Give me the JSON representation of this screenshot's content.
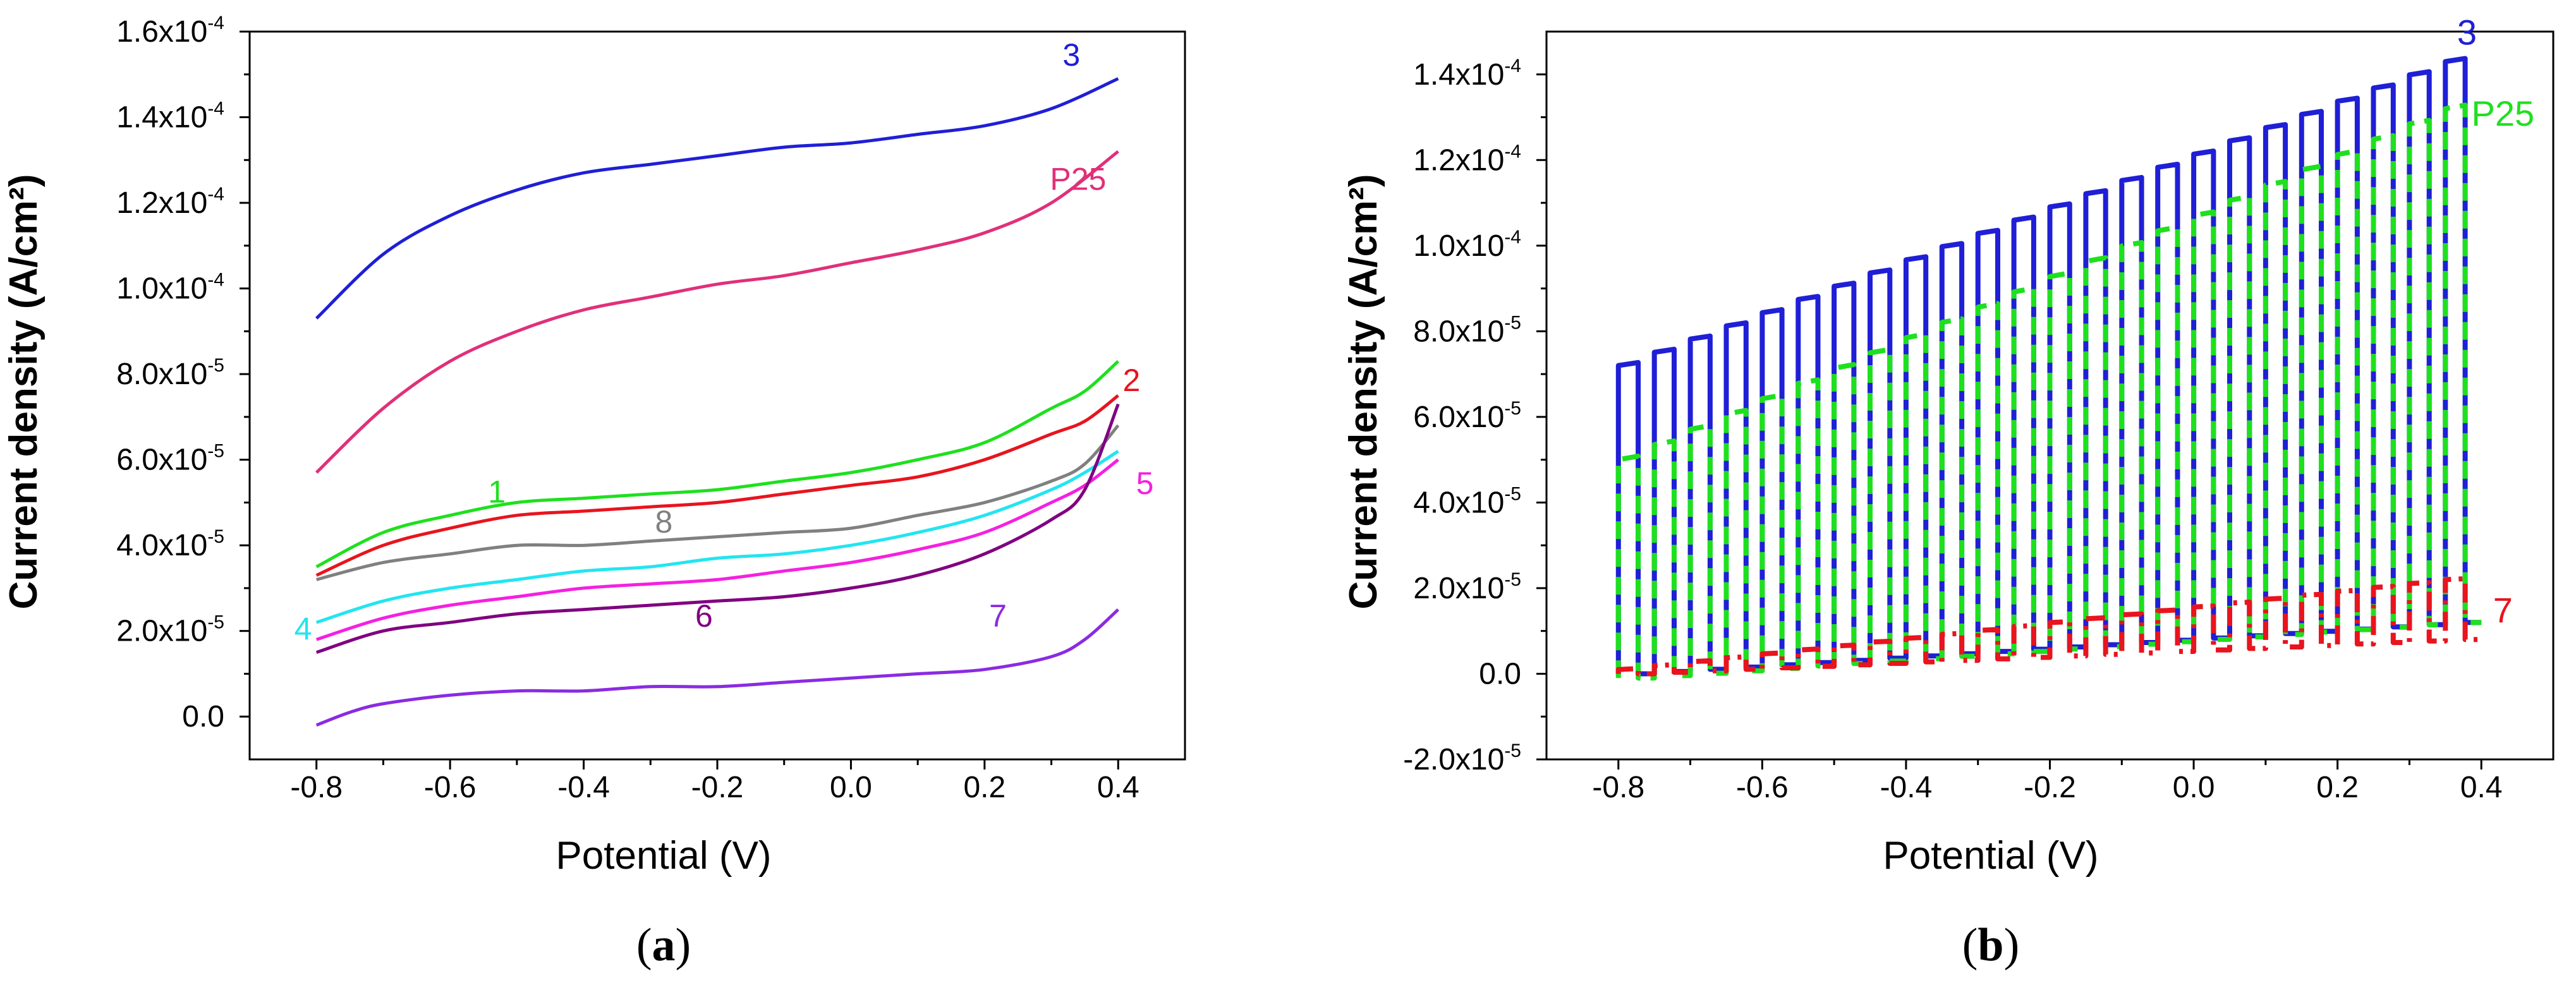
{
  "chart_data": [
    {
      "type": "line",
      "panel_label": {
        "open": "(",
        "letter": "a",
        "close": ")"
      },
      "xlabel": "Potential (V)",
      "ylabel": "Current density (A/cm²)",
      "xlim": [
        -0.9,
        0.5
      ],
      "ylim": [
        -1e-05,
        0.00016
      ],
      "x_ticks": [
        -0.8,
        -0.6,
        -0.4,
        -0.2,
        0.0,
        0.2,
        0.4
      ],
      "x_tick_labels": [
        "-0.8",
        "-0.6",
        "-0.4",
        "-0.2",
        "0.0",
        "0.2",
        "0.4"
      ],
      "y_ticks": [
        0,
        2e-05,
        4e-05,
        6e-05,
        8e-05,
        0.0001,
        0.00012,
        0.00014,
        0.00016
      ],
      "y_tick_labels": [
        {
          "mant": "0.0",
          "exp": ""
        },
        {
          "mant": "2.0x10",
          "exp": "-5"
        },
        {
          "mant": "4.0x10",
          "exp": "-5"
        },
        {
          "mant": "6.0x10",
          "exp": "-5"
        },
        {
          "mant": "8.0x10",
          "exp": "-5"
        },
        {
          "mant": "1.0x10",
          "exp": "-4"
        },
        {
          "mant": "1.2x10",
          "exp": "-4"
        },
        {
          "mant": "1.4x10",
          "exp": "-4"
        },
        {
          "mant": "1.6x10",
          "exp": "-4"
        }
      ],
      "series": [
        {
          "name": "3",
          "color": "#1f1fd6",
          "label_at": [
            0.33,
            0.000152
          ],
          "x": [
            -0.8,
            -0.7,
            -0.6,
            -0.5,
            -0.4,
            -0.3,
            -0.2,
            -0.1,
            0.0,
            0.1,
            0.2,
            0.3,
            0.4
          ],
          "y": [
            9.3e-05,
            0.000108,
            0.000117,
            0.000123,
            0.000127,
            0.000129,
            0.000131,
            0.000133,
            0.000134,
            0.000136,
            0.000138,
            0.000142,
            0.000149
          ]
        },
        {
          "name": "P25",
          "color": "#e0307a",
          "label_at": [
            0.34,
            0.000123
          ],
          "x": [
            -0.8,
            -0.7,
            -0.6,
            -0.5,
            -0.4,
            -0.3,
            -0.2,
            -0.1,
            0.0,
            0.1,
            0.2,
            0.3,
            0.4
          ],
          "y": [
            5.7e-05,
            7.2e-05,
            8.3e-05,
            9e-05,
            9.5e-05,
            9.8e-05,
            0.000101,
            0.000103,
            0.000106,
            0.000109,
            0.000113,
            0.00012,
            0.000132
          ]
        },
        {
          "name": "1",
          "color": "#1ee01e",
          "label_at": [
            -0.53,
            5e-05
          ],
          "x": [
            -0.8,
            -0.7,
            -0.6,
            -0.5,
            -0.4,
            -0.3,
            -0.2,
            -0.1,
            0.0,
            0.1,
            0.2,
            0.3,
            0.35,
            0.4
          ],
          "y": [
            3.5e-05,
            4.3e-05,
            4.7e-05,
            5e-05,
            5.1e-05,
            5.2e-05,
            5.3e-05,
            5.5e-05,
            5.7e-05,
            6e-05,
            6.4e-05,
            7.2e-05,
            7.6e-05,
            8.3e-05
          ]
        },
        {
          "name": "2",
          "color": "#e8141e",
          "label_at": [
            0.42,
            7.6e-05
          ],
          "x": [
            -0.8,
            -0.7,
            -0.6,
            -0.5,
            -0.4,
            -0.3,
            -0.2,
            -0.1,
            0.0,
            0.1,
            0.2,
            0.3,
            0.35,
            0.4
          ],
          "y": [
            3.3e-05,
            4e-05,
            4.4e-05,
            4.7e-05,
            4.8e-05,
            4.9e-05,
            5e-05,
            5.2e-05,
            5.4e-05,
            5.6e-05,
            6e-05,
            6.6e-05,
            6.9e-05,
            7.5e-05
          ]
        },
        {
          "name": "8",
          "color": "#808080",
          "label_at": [
            -0.28,
            4.3e-05
          ],
          "x": [
            -0.8,
            -0.7,
            -0.6,
            -0.5,
            -0.4,
            -0.3,
            -0.2,
            -0.1,
            0.0,
            0.1,
            0.2,
            0.3,
            0.35,
            0.4
          ],
          "y": [
            3.2e-05,
            3.6e-05,
            3.8e-05,
            4e-05,
            4e-05,
            4.1e-05,
            4.2e-05,
            4.3e-05,
            4.4e-05,
            4.7e-05,
            5e-05,
            5.5e-05,
            5.9e-05,
            6.8e-05
          ]
        },
        {
          "name": "4",
          "color": "#22e5f0",
          "label_at": [
            -0.82,
            1.8e-05
          ],
          "x": [
            -0.8,
            -0.7,
            -0.6,
            -0.5,
            -0.4,
            -0.3,
            -0.2,
            -0.1,
            0.0,
            0.1,
            0.2,
            0.3,
            0.35,
            0.4
          ],
          "y": [
            2.2e-05,
            2.7e-05,
            3e-05,
            3.2e-05,
            3.4e-05,
            3.5e-05,
            3.7e-05,
            3.8e-05,
            4e-05,
            4.3e-05,
            4.7e-05,
            5.3e-05,
            5.7e-05,
            6.2e-05
          ]
        },
        {
          "name": "5",
          "color": "#f520e0",
          "label_at": [
            0.44,
            5.2e-05
          ],
          "x": [
            -0.8,
            -0.7,
            -0.6,
            -0.5,
            -0.4,
            -0.3,
            -0.2,
            -0.1,
            0.0,
            0.1,
            0.2,
            0.3,
            0.35,
            0.4
          ],
          "y": [
            1.8e-05,
            2.3e-05,
            2.6e-05,
            2.8e-05,
            3e-05,
            3.1e-05,
            3.2e-05,
            3.4e-05,
            3.6e-05,
            3.9e-05,
            4.3e-05,
            5e-05,
            5.4e-05,
            6e-05
          ]
        },
        {
          "name": "6",
          "color": "#800080",
          "label_at": [
            -0.22,
            2.1e-05
          ],
          "x": [
            -0.8,
            -0.7,
            -0.6,
            -0.5,
            -0.4,
            -0.3,
            -0.2,
            -0.1,
            0.0,
            0.1,
            0.2,
            0.3,
            0.35,
            0.4
          ],
          "y": [
            1.5e-05,
            2e-05,
            2.2e-05,
            2.4e-05,
            2.5e-05,
            2.6e-05,
            2.7e-05,
            2.8e-05,
            3e-05,
            3.3e-05,
            3.8e-05,
            4.6e-05,
            5.3e-05,
            7.3e-05
          ]
        },
        {
          "name": "7",
          "color": "#8a2be2",
          "label_at": [
            0.22,
            2.1e-05
          ],
          "x": [
            -0.8,
            -0.75,
            -0.7,
            -0.6,
            -0.5,
            -0.4,
            -0.3,
            -0.2,
            -0.1,
            0.0,
            0.1,
            0.2,
            0.3,
            0.35,
            0.4
          ],
          "y": [
            -2e-06,
            1e-06,
            3e-06,
            5e-06,
            6e-06,
            6e-06,
            7e-06,
            7e-06,
            8e-06,
            9e-06,
            1e-05,
            1.1e-05,
            1.4e-05,
            1.8e-05,
            2.5e-05
          ]
        }
      ]
    },
    {
      "type": "line",
      "panel_label": {
        "open": "(",
        "letter": "b",
        "close": ")"
      },
      "xlabel": "Potential (V)",
      "ylabel": "Current density (A/cm²)",
      "xlim": [
        -0.9,
        0.5
      ],
      "ylim": [
        -2e-05,
        0.00015
      ],
      "x_ticks": [
        -0.8,
        -0.6,
        -0.4,
        -0.2,
        0.0,
        0.2,
        0.4
      ],
      "x_tick_labels": [
        "-0.8",
        "-0.6",
        "-0.4",
        "-0.2",
        "0.0",
        "0.2",
        "0.4"
      ],
      "y_ticks": [
        -2e-05,
        0,
        2e-05,
        4e-05,
        6e-05,
        8e-05,
        0.0001,
        0.00012,
        0.00014
      ],
      "y_tick_labels": [
        {
          "mant": "-2.0x10",
          "exp": "-5"
        },
        {
          "mant": "0.0",
          "exp": ""
        },
        {
          "mant": "2.0x10",
          "exp": "-5"
        },
        {
          "mant": "4.0x10",
          "exp": "-5"
        },
        {
          "mant": "6.0x10",
          "exp": "-5"
        },
        {
          "mant": "8.0x10",
          "exp": "-5"
        },
        {
          "mant": "1.0x10",
          "exp": "-4"
        },
        {
          "mant": "1.2x10",
          "exp": "-4"
        },
        {
          "mant": "1.4x10",
          "exp": "-4"
        }
      ],
      "series": [
        {
          "name": "3",
          "color": "#1f1fd6",
          "style": "solid",
          "label_at": [
            0.38,
            0.000147
          ],
          "chopped": true,
          "x_start": -0.8,
          "x_end": 0.4,
          "pulses": 24,
          "on_start": 7.2e-05,
          "on_end": 0.000143,
          "off_start": 0.0,
          "off_end": 1.2e-05
        },
        {
          "name": "P25",
          "color": "#1ee01e",
          "style": "dashed",
          "label_at": [
            0.43,
            0.000128
          ],
          "chopped": true,
          "x_start": -0.8,
          "x_end": 0.4,
          "pulses": 24,
          "on_start": 5e-05,
          "on_end": 0.000132,
          "off_start": -1e-06,
          "off_end": 1.2e-05
        },
        {
          "name": "7",
          "color": "#e8141e",
          "style": "dashdot",
          "label_at": [
            0.43,
            1.2e-05
          ],
          "chopped": true,
          "x_start": -0.8,
          "x_end": 0.4,
          "pulses": 24,
          "on_start": 1e-06,
          "on_end": 2.2e-05,
          "off_start": 0.0,
          "off_end": 8e-06
        }
      ]
    }
  ]
}
